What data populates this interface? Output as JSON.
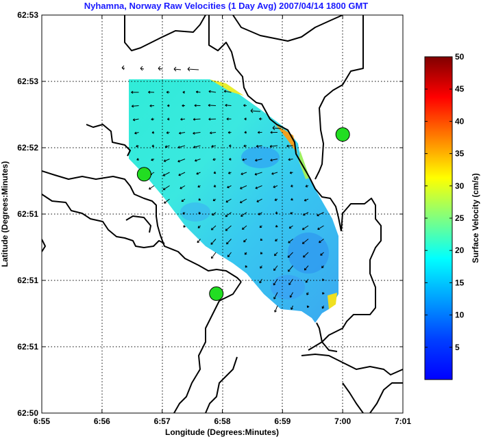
{
  "chart_data": {
    "type": "heatmap",
    "title": "Nyhamna, Norway Raw Velocities (1 Day Avg) 2007/04/14 1800 GMT",
    "xlabel": "Longitude (Degrees:Minutes)",
    "ylabel": "Latitude (Degrees:Minutes)",
    "x_ticks": [
      "6:55",
      "6:56",
      "6:57",
      "6:58",
      "6:59",
      "7:00",
      "7:01"
    ],
    "y_ticks": [
      "62:53",
      "62:53",
      "62:52",
      "62:51",
      "62:51",
      "62:51",
      "62:50"
    ],
    "grid": true,
    "colorbar": {
      "label": "Surface Velocity (cm/s)",
      "ticks": [
        "5",
        "10",
        "15",
        "20",
        "25",
        "30",
        "35",
        "40",
        "45",
        "50"
      ],
      "range": [
        0,
        50
      ],
      "colormap": "jet"
    },
    "radar_sites": [
      {
        "lon_min": 56.7,
        "lat_min": 1.8
      },
      {
        "lon_min": 57.9,
        "lat_min": 0.9
      },
      {
        "lon_min": 60.0,
        "lat_min": 2.1
      }
    ],
    "field_note": "Velocity field predominantly 10-15 cm/s (cyan) with slower regions near the center-south and higher speeds (20-35 cm/s) along the northeastern shoreline edge."
  },
  "colors": {
    "title": "#1a1aff",
    "site_marker": "#22dd22",
    "coastline": "#000000"
  }
}
